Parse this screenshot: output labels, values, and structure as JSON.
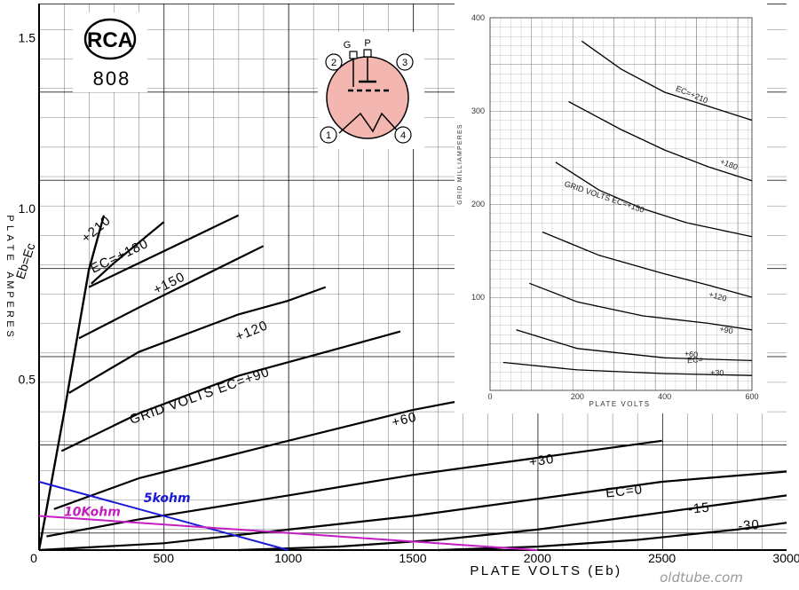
{
  "chart_data": [
    {
      "type": "line",
      "xlabel": "PLATE VOLTS (Eb)",
      "ylabel": "PLATE AMPERES",
      "xlim": [
        0,
        3000
      ],
      "ylim": [
        0,
        1.6
      ],
      "xticks": [
        0,
        500,
        1000,
        1500,
        2000,
        2500,
        3000
      ],
      "xtick_labels": [
        "0",
        "500",
        "1000",
        "1500",
        "2000",
        "2500",
        "3000"
      ],
      "yticks": [
        0.5,
        1.0,
        1.5
      ],
      "ytick_labels": [
        "0.5",
        "1.0",
        "1.5"
      ],
      "grid": true,
      "series": [
        {
          "name": "+210",
          "x": [
            210,
            300,
            400,
            500
          ],
          "y": [
            0.78,
            0.84,
            0.9,
            0.96
          ],
          "label_at": [
            240,
            0.93
          ]
        },
        {
          "name": "EC=+180",
          "x": [
            200,
            400,
            600,
            800
          ],
          "y": [
            0.77,
            0.84,
            0.91,
            0.98
          ],
          "label_at": [
            330,
            0.85
          ]
        },
        {
          "name": "+150",
          "x": [
            160,
            400,
            650,
            900
          ],
          "y": [
            0.62,
            0.71,
            0.8,
            0.89
          ],
          "label_at": [
            530,
            0.77
          ]
        },
        {
          "name": "+120",
          "x": [
            120,
            400,
            800,
            1000,
            1150
          ],
          "y": [
            0.46,
            0.58,
            0.69,
            0.73,
            0.77
          ],
          "label_at": [
            860,
            0.63
          ]
        },
        {
          "name": "GRID VOLTS EC=+90",
          "x": [
            90,
            400,
            800,
            1200,
            1450
          ],
          "y": [
            0.29,
            0.4,
            0.51,
            0.59,
            0.64
          ],
          "label_at": [
            650,
            0.44
          ]
        },
        {
          "name": "+60",
          "x": [
            60,
            400,
            1000,
            1500,
            2000
          ],
          "y": [
            0.12,
            0.21,
            0.32,
            0.41,
            0.48
          ],
          "label_at": [
            1470,
            0.37
          ]
        },
        {
          "name": "+30",
          "x": [
            30,
            400,
            1000,
            1500,
            2000,
            2500
          ],
          "y": [
            0.04,
            0.09,
            0.16,
            0.22,
            0.27,
            0.32
          ],
          "label_at": [
            2020,
            0.25
          ]
        },
        {
          "name": "EC=0",
          "x": [
            0,
            500,
            1000,
            1500,
            2000,
            2500,
            3000
          ],
          "y": [
            0,
            0.02,
            0.06,
            0.1,
            0.15,
            0.2,
            0.23
          ],
          "label_at": [
            2350,
            0.16
          ]
        },
        {
          "name": "-15",
          "x": [
            800,
            1200,
            1600,
            2000,
            2400,
            2800,
            3000
          ],
          "y": [
            0,
            0.01,
            0.03,
            0.06,
            0.1,
            0.14,
            0.16
          ],
          "label_at": [
            2650,
            0.11
          ]
        },
        {
          "name": "-30",
          "x": [
            1600,
            2000,
            2400,
            2800,
            3000
          ],
          "y": [
            0,
            0.01,
            0.03,
            0.06,
            0.08
          ],
          "label_at": [
            2850,
            0.06
          ]
        }
      ],
      "annotations": [
        {
          "text": "Eb=Ec",
          "x": [
            0,
            100,
            200,
            260
          ],
          "y": [
            0,
            0.4,
            0.82,
            0.98
          ],
          "label_at": [
            140,
            0.92
          ]
        }
      ],
      "load_lines": [
        {
          "name": "5kohm",
          "color": "#1a1ad6",
          "x": [
            0,
            1000
          ],
          "y": [
            0.2,
            0
          ],
          "label_at": [
            420,
            0.14
          ]
        },
        {
          "name": "10Kohm",
          "color": "#c21ec2",
          "x": [
            0,
            2000
          ],
          "y": [
            0.1,
            0
          ],
          "label_at": [
            100,
            0.1
          ]
        }
      ]
    },
    {
      "type": "line",
      "xlabel": "PLATE VOLTS",
      "ylabel": "GRID MILLIAMPERES",
      "xlim": [
        0,
        600
      ],
      "ylim": [
        0,
        400
      ],
      "xticks": [
        0,
        200,
        400,
        600
      ],
      "xtick_labels": [
        "0",
        "200",
        "400",
        "600"
      ],
      "yticks": [
        100,
        200,
        300,
        400
      ],
      "ytick_labels": [
        "100",
        "200",
        "300",
        "400"
      ],
      "grid": true,
      "series": [
        {
          "name": "EC=+210",
          "x": [
            210,
            300,
            400,
            500,
            600
          ],
          "y": [
            375,
            345,
            320,
            305,
            290
          ],
          "label_at": [
            460,
            315
          ]
        },
        {
          "name": "+180",
          "x": [
            180,
            300,
            400,
            500,
            600
          ],
          "y": [
            310,
            280,
            258,
            240,
            225
          ],
          "label_at": [
            545,
            240
          ]
        },
        {
          "name": "GRID VOLTS EC=+150",
          "x": [
            150,
            250,
            350,
            450,
            600
          ],
          "y": [
            245,
            215,
            195,
            180,
            165
          ],
          "label_at": [
            260,
            205
          ]
        },
        {
          "name": "+120",
          "x": [
            120,
            250,
            400,
            500,
            600
          ],
          "y": [
            170,
            145,
            125,
            113,
            100
          ],
          "label_at": [
            520,
            98
          ]
        },
        {
          "name": "+90",
          "x": [
            90,
            200,
            350,
            500,
            600
          ],
          "y": [
            115,
            95,
            80,
            72,
            65
          ],
          "label_at": [
            540,
            62
          ]
        },
        {
          "name": "+60",
          "x": [
            60,
            200,
            400,
            600
          ],
          "y": [
            65,
            45,
            35,
            32
          ],
          "label_at": [
            460,
            36
          ]
        },
        {
          "name": "+30",
          "x": [
            30,
            200,
            400,
            600
          ],
          "y": [
            30,
            22,
            18,
            16
          ],
          "label_at": [
            520,
            16
          ]
        },
        {
          "name": "EC=",
          "x": [],
          "y": [],
          "label_at": [
            470,
            30
          ]
        }
      ]
    }
  ],
  "tube": {
    "brand": "RCA",
    "model": "808",
    "pin_labels": [
      "G",
      "P",
      "2",
      "3",
      "1",
      "4"
    ],
    "envelope_color": "#f4b6b0"
  },
  "watermark": "oldtube.com"
}
